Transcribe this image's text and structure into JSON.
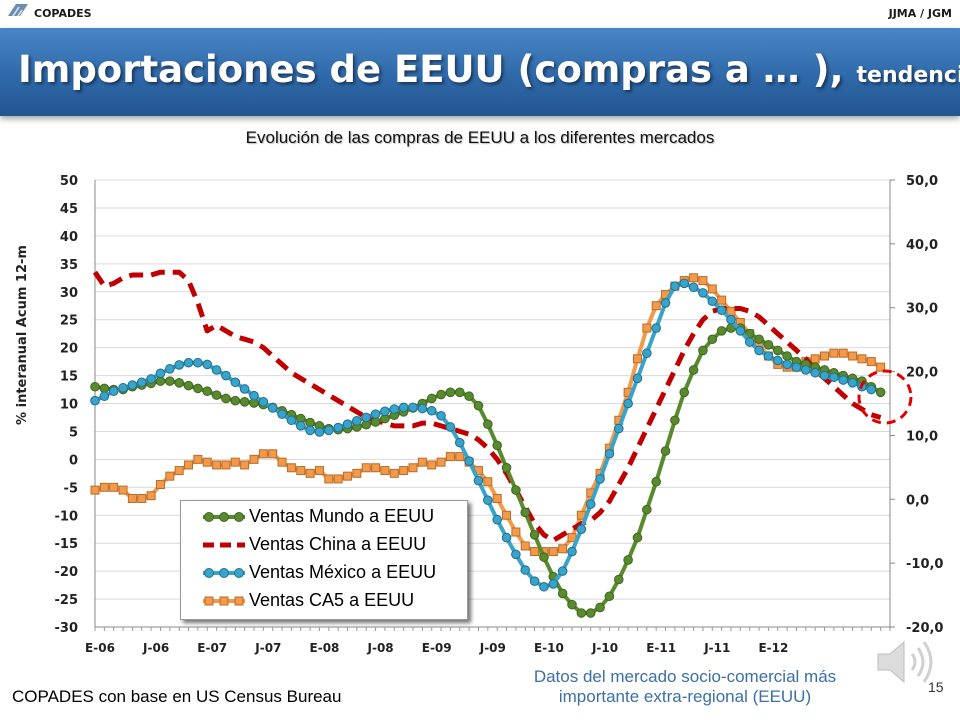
{
  "header": {
    "brand": "COPADES",
    "authors": "JJMA / JGM",
    "title_main": "Importaciones de EEUU (compras a … ),",
    "title_small": "tendencias"
  },
  "footer": {
    "source": "COPADES con base en US Census Bureau",
    "note_line1": "Datos del mercado socio-comercial más",
    "note_line2": "importante extra-regional (EEUU)",
    "page_number": "15"
  },
  "icons": {
    "logo": "copades-logo-icon",
    "speaker": "speaker-icon"
  },
  "colors": {
    "mundo": "#5a8a2e",
    "china": "#c00000",
    "mexico": "#3aa3c9",
    "ca5": "#f3994a",
    "banner": "#2f69aa",
    "highlight": "#e00000"
  },
  "chart_data": {
    "type": "line",
    "title": "Evolución de las compras de EEUU a los diferentes mercados",
    "ylabel": "% interanual Acum 12-m",
    "ylim": [
      -30,
      50
    ],
    "y2lim": [
      -20,
      50
    ],
    "yticks": [
      "50",
      "45",
      "40",
      "35",
      "30",
      "25",
      "20",
      "15",
      "10",
      "5",
      "0",
      "-5",
      "-10",
      "-15",
      "-20",
      "-25",
      "-30"
    ],
    "y2ticks": [
      "50,0",
      "40,0",
      "30,0",
      "20,0",
      "10,0",
      "0,0",
      "-10,0",
      "-20,0"
    ],
    "xticks": [
      "E-06",
      "J-06",
      "E-07",
      "J-07",
      "E-08",
      "J-08",
      "E-09",
      "J-09",
      "E-10",
      "J-10",
      "E-11",
      "J-11",
      "E-12"
    ],
    "x_start": "2006-01",
    "legend": [
      "Ventas Mundo a EEUU",
      "Ventas China a EEUU",
      "Ventas México a EEUU",
      "Ventas CA5 a EEUU"
    ],
    "series": [
      {
        "name": "Ventas Mundo a EEUU",
        "axis": "left",
        "values": [
          13,
          12.7,
          12.5,
          12.5,
          13,
          13.3,
          13.6,
          14,
          14,
          13.7,
          13.2,
          12.7,
          12.2,
          11.5,
          10.9,
          10.5,
          10.3,
          10.1,
          9.8,
          9.3,
          8.7,
          8,
          7.3,
          6.6,
          6,
          5.5,
          5.3,
          5.5,
          5.8,
          6.2,
          6.7,
          7.3,
          7.9,
          8.5,
          9.2,
          10,
          10.9,
          11.6,
          12,
          12,
          11.3,
          9.6,
          6.3,
          2.5,
          -1.5,
          -5.5,
          -9.5,
          -13.5,
          -17.5,
          -21,
          -24,
          -26,
          -27.5,
          -27.5,
          -26.5,
          -24.5,
          -21.5,
          -18,
          -14,
          -9,
          -4,
          1.5,
          7,
          12,
          16,
          19.5,
          21.5,
          23,
          23.5,
          23.5,
          22.5,
          21.5,
          20.5,
          19.5,
          18.5,
          17.5,
          17,
          16.5,
          16,
          15.5,
          15,
          14.5,
          14,
          13,
          12
        ]
      },
      {
        "name": "Ventas China a EEUU",
        "axis": "left",
        "values": [
          33.5,
          31,
          31.5,
          32.5,
          33,
          33,
          33,
          33.5,
          33.5,
          33.5,
          32,
          28,
          23,
          24,
          23,
          22,
          21.5,
          21,
          20,
          18.5,
          17,
          15.5,
          14.5,
          13.5,
          12.5,
          11.5,
          10.5,
          9.5,
          8.5,
          7.5,
          7,
          6.5,
          6,
          6,
          6,
          6.5,
          6.5,
          6,
          5.5,
          5,
          4.5,
          3.5,
          2,
          0,
          -2.5,
          -5.5,
          -8.5,
          -11.5,
          -13.5,
          -14.5,
          -13.5,
          -12.5,
          -11.5,
          -11,
          -9.5,
          -7.5,
          -4.5,
          -1.5,
          2,
          5.5,
          9,
          12.5,
          16,
          19.5,
          22.5,
          25,
          26.5,
          27,
          27,
          27,
          26.5,
          25.5,
          24,
          22.5,
          21,
          19.5,
          18,
          16,
          14.5,
          13,
          11.5,
          10,
          9,
          8,
          7.5
        ]
      },
      {
        "name": "Ventas México a EEUU",
        "axis": "left",
        "values": [
          10.5,
          11.3,
          12.2,
          12.8,
          13.3,
          13.8,
          14.4,
          15.4,
          16.2,
          16.9,
          17.3,
          17.3,
          17,
          16,
          15,
          13.8,
          12.6,
          11.4,
          10.3,
          9.2,
          8.1,
          7,
          6,
          5.2,
          4.9,
          5.2,
          5.7,
          6.3,
          6.9,
          7.5,
          8.1,
          8.6,
          9,
          9.3,
          9.3,
          9.1,
          8.7,
          7.8,
          5.8,
          3,
          -0.3,
          -3.8,
          -7.3,
          -10.8,
          -14,
          -17,
          -19.8,
          -21.8,
          -22.8,
          -22.3,
          -20,
          -16.5,
          -12.5,
          -8,
          -3.5,
          1,
          5.5,
          10,
          14.5,
          19,
          23.5,
          28,
          31,
          31.5,
          30.8,
          29.8,
          28.3,
          26.7,
          25,
          23,
          21,
          19.5,
          18.5,
          17.7,
          17,
          16.5,
          16,
          15.5,
          15,
          14.7,
          14.2,
          13.7,
          13,
          12.5
        ]
      },
      {
        "name": "Ventas CA5 a EEUU",
        "axis": "left",
        "values": [
          -5.5,
          -5,
          -5,
          -5.5,
          -7,
          -7,
          -6.5,
          -4.5,
          -3,
          -2,
          -1,
          0,
          -0.5,
          -1,
          -1,
          -0.5,
          -1,
          0,
          1,
          1,
          -0.5,
          -1.5,
          -2,
          -2.5,
          -2,
          -3.5,
          -3.5,
          -3,
          -2.5,
          -1.5,
          -1.5,
          -2,
          -2.5,
          -2,
          -1.5,
          -0.5,
          -1,
          -0.5,
          0.5,
          0.5,
          -0.5,
          -2,
          -4,
          -7,
          -10,
          -13,
          -15.5,
          -16.5,
          -16.5,
          -16.5,
          -16,
          -14,
          -10,
          -6,
          -2.5,
          2,
          7,
          12,
          18,
          23.5,
          27.5,
          29.5,
          31,
          32,
          32.5,
          32,
          30.5,
          28.5,
          26.5,
          24.5,
          22.5,
          20.5,
          18.5,
          17,
          16.5,
          16.5,
          17.5,
          18,
          18.5,
          19,
          19,
          18.5,
          18,
          17.5,
          16.5
        ]
      }
    ]
  }
}
